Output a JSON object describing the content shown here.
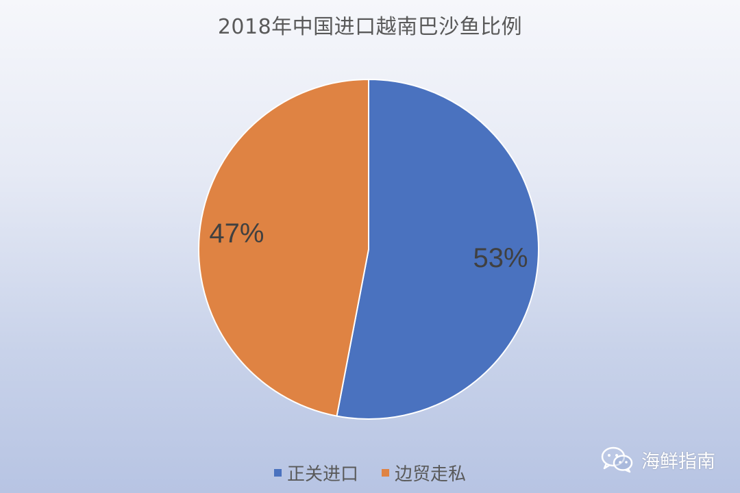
{
  "chart_data": {
    "type": "pie",
    "title": "2018年中国进口越南巴沙鱼比例",
    "slices": [
      {
        "name": "正关进口",
        "value": 53,
        "label": "53%",
        "color": "#4a72bf"
      },
      {
        "name": "边贸走私",
        "value": 47,
        "label": "47%",
        "color": "#df8343"
      }
    ],
    "legend_position": "bottom"
  },
  "watermark": {
    "text": "海鲜指南",
    "icon": "wechat-icon"
  }
}
